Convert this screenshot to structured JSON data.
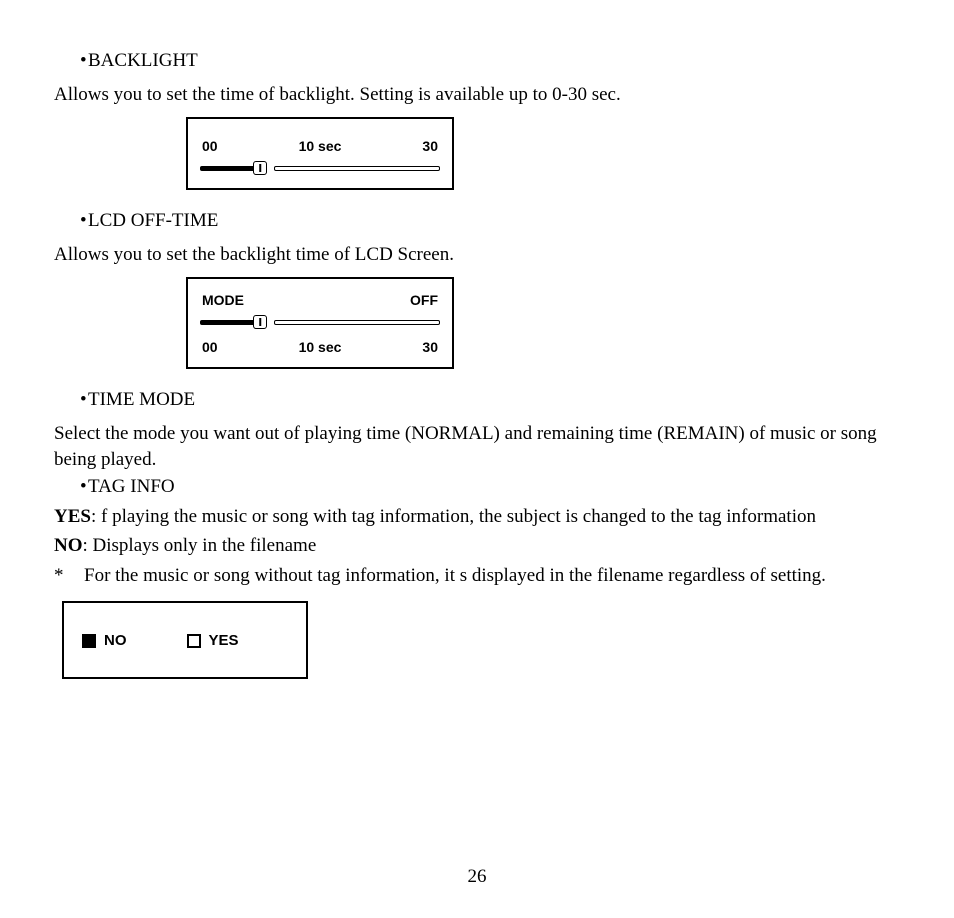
{
  "sections": {
    "backlight": {
      "heading": "BACKLIGHT",
      "desc": "Allows you to set the time of backlight. Setting is available up to 0-30 sec.",
      "slider": {
        "min_label": "00",
        "center_label": "10 sec",
        "max_label": "30",
        "thumb_percent": 25
      }
    },
    "lcdoff": {
      "heading": "LCD OFF-TIME",
      "desc": "Allows you to set the backlight time of LCD Screen.",
      "slider": {
        "row1_left": "MODE",
        "row1_right": "OFF",
        "min_label": "00",
        "center_label": "10 sec",
        "max_label": "30",
        "thumb_percent": 25
      }
    },
    "timemode": {
      "heading": "TIME MODE",
      "desc": "Select the mode you want out of playing time (NORMAL) and remaining time (REMAIN) of music or song being played."
    },
    "taginfo": {
      "heading": "TAG INFO",
      "yes_label": "YES",
      "yes_text": ":  f  playing  the  music  or  song  with  tag  information,  the  subject  is  changed  to  the  tag information",
      "no_label": "NO",
      "no_text": ": Displays only in the filename",
      "note_star": "*",
      "note_text": "For  the  music  or  song  without  tag  information,  it s  displayed in  the  filename  regardless  of setting.",
      "option_no": "NO",
      "option_yes": "YES"
    }
  },
  "bullet": "•",
  "page_number": "26"
}
